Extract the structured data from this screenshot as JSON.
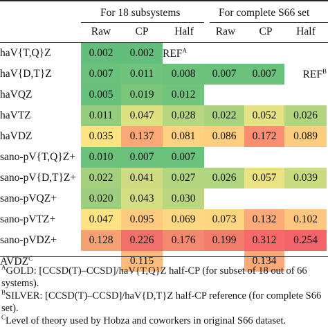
{
  "header": {
    "group1": "For 18 subsystems",
    "group2": "For complete S66 set",
    "columns": [
      "Raw",
      "CP",
      "Half",
      "Raw",
      "CP",
      "Half"
    ]
  },
  "rows": [
    {
      "label": "haV{T,Q}Z",
      "sup": "",
      "cells": [
        {
          "v": "0.002",
          "c": "#63be7b"
        },
        {
          "v": "0.002",
          "c": "#63be7b"
        },
        {
          "v": "REF",
          "sup": "A",
          "c": "",
          "ref": true
        },
        {
          "v": "",
          "c": ""
        },
        {
          "v": "",
          "c": ""
        },
        {
          "v": "",
          "c": ""
        }
      ]
    },
    {
      "label": "haV{D,T}Z",
      "sup": "",
      "cells": [
        {
          "v": "0.007",
          "c": "#6ac17b"
        },
        {
          "v": "0.011",
          "c": "#70c37c"
        },
        {
          "v": "0.008",
          "c": "#6cc27b"
        },
        {
          "v": "0.007",
          "c": "#6ac17b"
        },
        {
          "v": "0.007",
          "c": "#6ac17b"
        },
        {
          "v": "REF",
          "sup": "B",
          "c": "",
          "refR": true
        }
      ]
    },
    {
      "label": "haVQZ",
      "sup": "",
      "cells": [
        {
          "v": "0.005",
          "c": "#67c07b"
        },
        {
          "v": "0.019",
          "c": "#7cc67c"
        },
        {
          "v": "0.012",
          "c": "#71c47c"
        },
        {
          "v": "",
          "c": ""
        },
        {
          "v": "",
          "c": ""
        },
        {
          "v": "",
          "c": ""
        }
      ]
    },
    {
      "label": "haVTZ",
      "sup": "",
      "cells": [
        {
          "v": "0.011",
          "c": "#94cd7e"
        },
        {
          "v": "0.047",
          "c": "#dce081"
        },
        {
          "v": "0.028",
          "c": "#b6d67f"
        },
        {
          "v": "0.022",
          "c": "#a9d27f"
        },
        {
          "v": "0.052",
          "c": "#e4e283"
        },
        {
          "v": "0.026",
          "c": "#b1d57f"
        }
      ]
    },
    {
      "label": "haVDZ",
      "sup": "",
      "cells": [
        {
          "v": "0.035",
          "c": "#fee382"
        },
        {
          "v": "0.137",
          "c": "#fba776"
        },
        {
          "v": "0.081",
          "c": "#fed280"
        },
        {
          "v": "0.086",
          "c": "#fdcf7f"
        },
        {
          "v": "0.172",
          "c": "#f98e72"
        },
        {
          "v": "0.089",
          "c": "#fdce7f"
        }
      ]
    },
    {
      "label": "sano-pV{T,Q}Z+",
      "sup": "",
      "cells": [
        {
          "v": "0.010",
          "c": "#6dc27b"
        },
        {
          "v": "0.007",
          "c": "#69c17b"
        },
        {
          "v": "0.007",
          "c": "#69c17b"
        },
        {
          "v": "",
          "c": ""
        },
        {
          "v": "",
          "c": ""
        },
        {
          "v": "",
          "c": ""
        }
      ]
    },
    {
      "label": "sano-pV{D,T}Z+",
      "sup": "",
      "cells": [
        {
          "v": "0.022",
          "c": "#a5d17e"
        },
        {
          "v": "0.041",
          "c": "#cedb80"
        },
        {
          "v": "0.027",
          "c": "#b2d57f"
        },
        {
          "v": "0.026",
          "c": "#b0d57f"
        },
        {
          "v": "0.057",
          "c": "#ebe383"
        },
        {
          "v": "0.039",
          "c": "#cadb80"
        }
      ]
    },
    {
      "label": "sano-pVQZ+",
      "sup": "",
      "cells": [
        {
          "v": "0.020",
          "c": "#9fcf7e"
        },
        {
          "v": "0.043",
          "c": "#d3dd81"
        },
        {
          "v": "0.030",
          "c": "#bad780"
        },
        {
          "v": "",
          "c": ""
        },
        {
          "v": "",
          "c": ""
        },
        {
          "v": "",
          "c": ""
        }
      ]
    },
    {
      "label": "sano-pVTZ+",
      "sup": "",
      "cells": [
        {
          "v": "0.047",
          "c": "#ffe383"
        },
        {
          "v": "0.095",
          "c": "#fdca7e"
        },
        {
          "v": "0.069",
          "c": "#fed781"
        },
        {
          "v": "0.073",
          "c": "#fed680"
        },
        {
          "v": "0.132",
          "c": "#fcaa77"
        },
        {
          "v": "0.102",
          "c": "#fdc57d"
        }
      ]
    },
    {
      "label": "sano-pVDZ+",
      "sup": "",
      "cells": [
        {
          "v": "0.128",
          "c": "#f5a173"
        },
        {
          "v": "0.226",
          "c": "#f2706a"
        },
        {
          "v": "0.176",
          "c": "#f4896f"
        },
        {
          "v": "0.199",
          "c": "#f37d6d"
        },
        {
          "v": "0.312",
          "c": "#f8696b"
        },
        {
          "v": "0.254",
          "c": "#f3636a"
        }
      ]
    },
    {
      "label": "AVDZ",
      "sup": "C",
      "cells": [
        {
          "v": "",
          "c": ""
        },
        {
          "v": "0.115",
          "c": "#fdbb7b"
        },
        {
          "v": "",
          "c": ""
        },
        {
          "v": "",
          "c": ""
        },
        {
          "v": "0.134",
          "c": "#fca877"
        },
        {
          "v": "",
          "c": ""
        }
      ]
    }
  ],
  "footnotes": [
    {
      "mark": "A",
      "text": "GOLD: [CCSD(T)–CCSD]/haV{T,Q}Z half-CP (for subset of 18 out of 66 systems)."
    },
    {
      "mark": "B",
      "text": "SILVER: [CCSD(T)–CCSD]/haV{D,T}Z half-CP reference (for complete S66 set)."
    },
    {
      "mark": "C",
      "text": "Level of theory used by Hobza and coworkers in original S66 dataset."
    }
  ]
}
